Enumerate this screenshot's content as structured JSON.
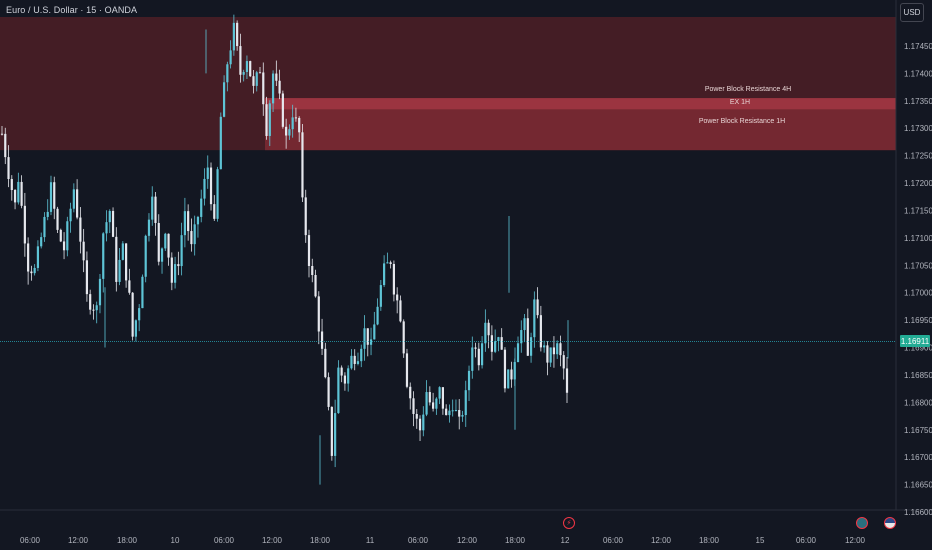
{
  "header": {
    "symbol_line": "Euro / U.S. Dollar · 15 · OANDA",
    "currency_button": "USD"
  },
  "colors": {
    "background": "#131722",
    "candle_up": "#5ec4d6",
    "candle_down": "#e6e8ee",
    "zone_4h": "#4e1f26",
    "zone_1h": "#7a2a33",
    "zone_ex": "#9b3440",
    "last_price_line": "#2aa8b8"
  },
  "events": {
    "lightning": "lightning-icon",
    "flag_1": "globe-flag-icon",
    "flag_2": "us-flag-icon"
  },
  "chart_data": {
    "type": "candlestick",
    "title": "Euro / U.S. Dollar · 15 · OANDA",
    "xlabel": "",
    "ylabel": "",
    "currency": "USD",
    "ylim": [
      1.1657,
      1.1749
    ],
    "y_ticks": [
      "1.17450",
      "1.17400",
      "1.17350",
      "1.17300",
      "1.17250",
      "1.17200",
      "1.17150",
      "1.17100",
      "1.17050",
      "1.17000",
      "1.16950",
      "1.16900",
      "1.16850",
      "1.16800",
      "1.16750",
      "1.16700",
      "1.16650",
      "1.16600"
    ],
    "x_ticks": [
      "06:00",
      "12:00",
      "18:00",
      "10",
      "06:00",
      "12:00",
      "18:00",
      "11",
      "06:00",
      "12:00",
      "18:00",
      "12",
      "06:00",
      "12:00",
      "18:00",
      "15",
      "06:00",
      "12:00"
    ],
    "last_price": "1.16911",
    "zones": [
      {
        "label": "Power Block Resistance  4H",
        "y_top": 1.1749,
        "y_bottom": 1.1726
      },
      {
        "label": "EX 1H",
        "y_top": 1.17355,
        "y_bottom": 1.1734
      },
      {
        "label": "Power Block Resistance  1H",
        "y_top": 1.1734,
        "y_bottom": 1.1726
      }
    ],
    "price_path": [
      [
        0,
        1.1729
      ],
      [
        2,
        1.1722
      ],
      [
        4,
        1.1716
      ],
      [
        5,
        1.1721
      ],
      [
        8,
        1.1705
      ],
      [
        10,
        1.1704
      ],
      [
        12,
        1.171
      ],
      [
        15,
        1.1719
      ],
      [
        17,
        1.1711
      ],
      [
        19,
        1.1708
      ],
      [
        22,
        1.1719
      ],
      [
        24,
        1.171
      ],
      [
        26,
        1.1699
      ],
      [
        29,
        1.1697
      ],
      [
        31,
        1.1711
      ],
      [
        33,
        1.1715
      ],
      [
        35,
        1.1703
      ],
      [
        37,
        1.1708
      ],
      [
        39,
        1.1699
      ],
      [
        40,
        1.1692
      ],
      [
        42,
        1.1698
      ],
      [
        44,
        1.171
      ],
      [
        46,
        1.1719
      ],
      [
        48,
        1.1705
      ],
      [
        50,
        1.1712
      ],
      [
        52,
        1.1702
      ],
      [
        54,
        1.1706
      ],
      [
        56,
        1.1715
      ],
      [
        58,
        1.1708
      ],
      [
        60,
        1.1714
      ],
      [
        63,
        1.1723
      ],
      [
        65,
        1.1712
      ],
      [
        67,
        1.1732
      ],
      [
        69,
        1.1742
      ],
      [
        71,
        1.1748
      ],
      [
        73,
        1.174
      ],
      [
        75,
        1.1743
      ],
      [
        77,
        1.1737
      ],
      [
        79,
        1.1741
      ],
      [
        81,
        1.173
      ],
      [
        83,
        1.174
      ],
      [
        85,
        1.1735
      ],
      [
        87,
        1.1728
      ],
      [
        89,
        1.1733
      ],
      [
        91,
        1.1729
      ],
      [
        92,
        1.1716
      ],
      [
        94,
        1.1706
      ],
      [
        96,
        1.1699
      ],
      [
        98,
        1.1689
      ],
      [
        100,
        1.1678
      ],
      [
        101,
        1.1671
      ],
      [
        103,
        1.1686
      ],
      [
        105,
        1.1684
      ],
      [
        107,
        1.1688
      ],
      [
        109,
        1.1689
      ],
      [
        111,
        1.1693
      ],
      [
        113,
        1.169
      ],
      [
        115,
        1.1698
      ],
      [
        117,
        1.1704
      ],
      [
        119,
        1.1706
      ],
      [
        120,
        1.1701
      ],
      [
        122,
        1.1696
      ],
      [
        124,
        1.1684
      ],
      [
        126,
        1.1678
      ],
      [
        128,
        1.1675
      ],
      [
        130,
        1.1682
      ],
      [
        132,
        1.1678
      ],
      [
        134,
        1.1682
      ],
      [
        136,
        1.1677
      ],
      [
        138,
        1.168
      ],
      [
        140,
        1.1676
      ],
      [
        142,
        1.1681
      ],
      [
        144,
        1.1691
      ],
      [
        146,
        1.1688
      ],
      [
        148,
        1.1696
      ],
      [
        150,
        1.169
      ],
      [
        152,
        1.1693
      ],
      [
        154,
        1.1684
      ],
      [
        156,
        1.1685
      ],
      [
        158,
        1.1692
      ],
      [
        160,
        1.1694
      ],
      [
        161,
        1.1688
      ],
      [
        163,
        1.1698
      ],
      [
        165,
        1.1691
      ],
      [
        167,
        1.1688
      ],
      [
        170,
        1.169
      ],
      [
        172,
        1.1686
      ],
      [
        173,
        1.1681
      ]
    ]
  }
}
